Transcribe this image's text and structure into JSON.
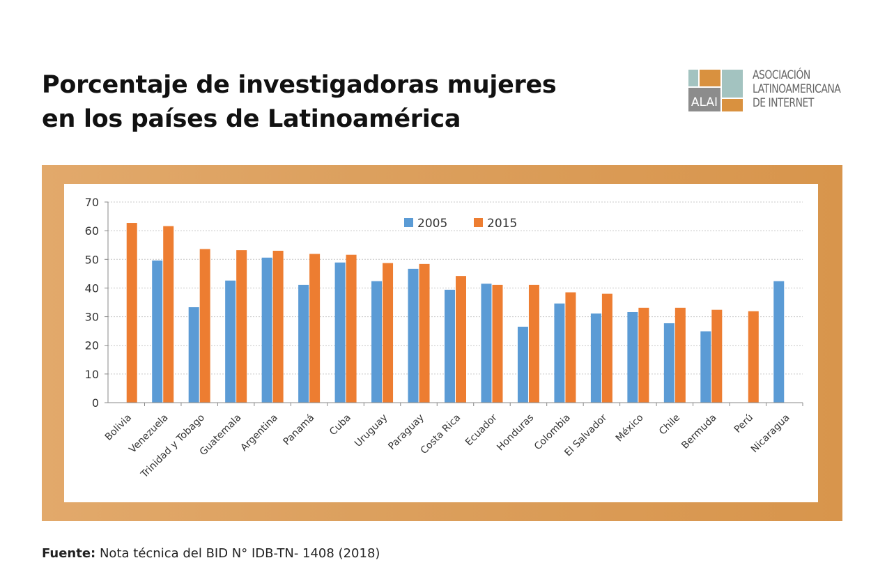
{
  "header": {
    "title_line1": "Porcentaje de investigadoras mujeres",
    "title_line2": "en los países de Latinoamérica"
  },
  "logo": {
    "mark_text": "ALAI",
    "line1": "ASOCIACIÓN",
    "line2": "LATINOAMERICANA",
    "line3": "DE INTERNET",
    "colors": {
      "teal": "#a3c3c0",
      "orange": "#d9913f",
      "gray": "#8c8c8c"
    }
  },
  "footer": {
    "source_label": "Fuente:",
    "source_text": " Nota técnica del BID N° IDB-TN- 1408 (2018)"
  },
  "chart_data": {
    "type": "bar",
    "categories": [
      "Bolivia",
      "Venezuela",
      "Trinidad y Tobago",
      "Guatemala",
      "Argentina",
      "Panamá",
      "Cuba",
      "Uruguay",
      "Paraguay",
      "Costa Rica",
      "Ecuador",
      "Honduras",
      "Colombia",
      "El Salvador",
      "México",
      "Chile",
      "Bermuda",
      "Perú",
      "Nicaragua"
    ],
    "series": [
      {
        "name": "2005",
        "color": "#5b9bd5",
        "values": [
          null,
          49.6,
          33.3,
          42.6,
          50.6,
          41.1,
          48.9,
          42.4,
          46.7,
          39.4,
          41.5,
          26.5,
          34.6,
          31.1,
          31.6,
          27.7,
          24.9,
          null,
          42.4
        ]
      },
      {
        "name": "2015",
        "color": "#ed7d31",
        "values": [
          62.7,
          61.6,
          53.6,
          53.2,
          53.0,
          51.9,
          51.6,
          48.7,
          48.4,
          44.2,
          41.1,
          41.1,
          38.5,
          38.0,
          33.1,
          33.1,
          32.4,
          31.9,
          null
        ]
      }
    ],
    "ylim": [
      0,
      70
    ],
    "yticks": [
      0,
      10,
      20,
      30,
      40,
      50,
      60,
      70
    ],
    "grid": true,
    "legend_position": "top-center"
  }
}
